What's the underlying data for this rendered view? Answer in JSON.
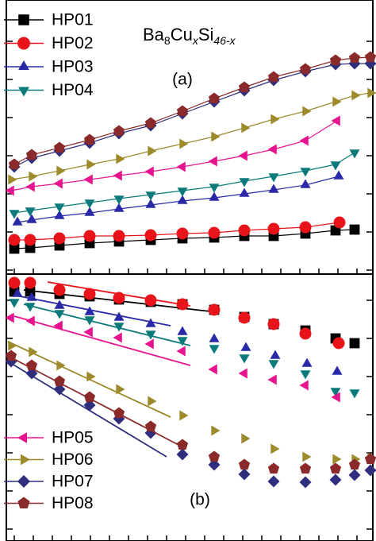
{
  "chart_data": [
    {
      "type": "line",
      "title_parts": [
        "Ba",
        "8",
        "Cu",
        "x",
        "Si",
        "46-x"
      ],
      "annotation": "(a)",
      "legend": "upper left",
      "xlim": [
        0,
        47.4
      ],
      "ylim": [
        0,
        34.5
      ],
      "xticks": [
        1.8,
        4.2,
        6.6,
        9,
        11.4,
        13.8,
        16.2,
        18.6,
        21,
        23.4,
        25.8,
        28.2,
        30.6,
        33,
        35.4,
        37.8,
        40.2,
        42.6,
        45
      ],
      "yticks": [
        0.5,
        5.3,
        10.1,
        14.9,
        19.7,
        24.5,
        29.3
      ],
      "series": [
        {
          "name": "HP01",
          "color": "#000000",
          "marker": "square",
          "x": [
            1.8,
            3.8,
            7.5,
            11.3,
            15,
            19,
            23,
            27,
            30.8,
            34.5,
            38.5,
            42.3,
            44.7
          ],
          "values": [
            3.2,
            3.3,
            3.6,
            3.9,
            4.1,
            4.3,
            4.5,
            4.6,
            4.8,
            4.8,
            5.1,
            5.5,
            5.6
          ]
        },
        {
          "name": "HP02",
          "color": "#e8141a",
          "marker": "circle",
          "x": [
            1.8,
            3.8,
            7.5,
            11.3,
            15,
            19,
            23,
            27,
            30.8,
            34.5,
            38.5,
            42.8
          ],
          "values": [
            4.3,
            4.3,
            4.5,
            4.8,
            4.8,
            4.9,
            5.1,
            5.2,
            5.5,
            5.7,
            5.9,
            6.5
          ]
        },
        {
          "name": "HP03",
          "color": "#2a2aa8",
          "marker": "triangle-up",
          "x": [
            2.2,
            4,
            7.5,
            11.3,
            15,
            19,
            23,
            27,
            30.8,
            34.5,
            38.5,
            42.7
          ],
          "values": [
            6.5,
            6.8,
            7.3,
            7.7,
            8.2,
            8.7,
            9.2,
            9.6,
            10.1,
            10.6,
            11.2,
            12.3
          ]
        },
        {
          "name": "HP04",
          "color": "#0a7a7a",
          "marker": "triangle-down",
          "x": [
            1.8,
            3.8,
            7.5,
            11.3,
            15,
            19,
            23,
            27,
            30.8,
            34.5,
            38.5,
            42.3,
            44.7
          ],
          "values": [
            7.7,
            8,
            8.5,
            9,
            9.5,
            10,
            10.5,
            11,
            11.7,
            12.3,
            13,
            13.8,
            15.3
          ]
        },
        {
          "name": "HP05",
          "color": "#e8138f",
          "marker": "triangle-left",
          "x": [
            1.4,
            4,
            7.5,
            11.3,
            15,
            19,
            23,
            27,
            30.8,
            34.5,
            38.5,
            42.5
          ],
          "values": [
            10.5,
            11,
            11.4,
            11.9,
            12.4,
            12.9,
            13.5,
            14.2,
            14.9,
            15.7,
            16.8,
            19.3
          ]
        },
        {
          "name": "HP06",
          "color": "#9c8a2b",
          "marker": "triangle-right",
          "x": [
            1.4,
            4,
            7.5,
            11.3,
            15,
            19,
            23,
            27,
            30.8,
            34.5,
            38.5,
            42.3,
            44.7,
            46.7
          ],
          "values": [
            11.9,
            12.3,
            13,
            13.8,
            14.5,
            15.5,
            16.4,
            17.3,
            18.4,
            19.5,
            20.5,
            21.7,
            22.5,
            22.8
          ]
        },
        {
          "name": "HP07",
          "color": "#2e2e7c",
          "marker": "diamond",
          "x": [
            1.8,
            4,
            7.5,
            11.3,
            15,
            19,
            23,
            27,
            30.8,
            34.5,
            38.5,
            42.3,
            44.7,
            46.7
          ],
          "values": [
            13.5,
            14.6,
            15.5,
            16.5,
            17.7,
            18.7,
            20.2,
            21.7,
            23.1,
            24.4,
            25.5,
            26.4,
            26.5,
            26.5
          ]
        },
        {
          "name": "HP08",
          "color": "#8b2a2a",
          "marker": "pentagon",
          "x": [
            1.8,
            4,
            7.5,
            11.3,
            15,
            19,
            23,
            27,
            30.8,
            34.5,
            38.5,
            42.3,
            44.7,
            46.7
          ],
          "values": [
            13.8,
            15,
            15.9,
            16.9,
            18,
            19,
            20.5,
            22.1,
            23.5,
            24.8,
            25.8,
            26.9,
            27.2,
            27.3
          ]
        }
      ]
    },
    {
      "type": "scatter",
      "annotation": "(b)",
      "legend": "lower left",
      "xlim": [
        0,
        47.4
      ],
      "ylim": [
        0,
        33.6
      ],
      "xticks": [
        1.8,
        4.2,
        6.6,
        9,
        11.4,
        13.8,
        16.2,
        18.6,
        21,
        23.4,
        25.8,
        28.2,
        30.6,
        33,
        35.4,
        37.8,
        40.2,
        42.6,
        45
      ],
      "yticks": [
        1.5,
        6.3,
        11.1,
        15.9,
        20.7,
        25.5,
        30.3
      ],
      "series": [
        {
          "name": "HP01",
          "color": "#000000",
          "marker": "square",
          "x": [
            1.8,
            3.8,
            7.5,
            11.3,
            15,
            19,
            23,
            27,
            30.8,
            34.5,
            38.5,
            42.3,
            44.7
          ],
          "values": [
            31.4,
            31.4,
            31.1,
            30.8,
            30.4,
            30.1,
            29.8,
            29.1,
            28.2,
            27.3,
            26.5,
            25.5,
            24.9
          ],
          "fit_x": [
            3,
            26.5
          ],
          "fit_values": [
            31.6,
            28.9
          ]
        },
        {
          "name": "HP02",
          "color": "#e8141a",
          "marker": "circle",
          "x": [
            1.8,
            3.8,
            7.5,
            11.3,
            15,
            19,
            23,
            27,
            30.8,
            34.5,
            38.5,
            42.7
          ],
          "values": [
            32.5,
            32.5,
            31.6,
            31.1,
            30.6,
            30.3,
            29.8,
            29.1,
            28.1,
            27.3,
            26.1,
            24.9
          ],
          "fit_x": [
            6,
            24
          ],
          "fit_values": [
            32.6,
            29.6
          ]
        },
        {
          "name": "HP03",
          "color": "#2a2aa8",
          "marker": "triangle-up",
          "x": [
            2.2,
            4,
            7.5,
            11.3,
            15,
            19,
            23,
            27,
            31,
            34.7,
            38.7,
            42.5
          ],
          "values": [
            31.1,
            30.6,
            29.6,
            28.8,
            28.1,
            27.3,
            26.3,
            25.4,
            24.3,
            23.3,
            22.3,
            21.3
          ],
          "fit_x": [
            2,
            21.5
          ],
          "fit_values": [
            30.9,
            27.1
          ]
        },
        {
          "name": "HP04",
          "color": "#0a7a7a",
          "marker": "triangle-down",
          "x": [
            1.8,
            3.8,
            7.5,
            11.3,
            15,
            19,
            23,
            27,
            30.8,
            34.5,
            38.5,
            42.3,
            44.7
          ],
          "values": [
            30.1,
            29.6,
            28.7,
            27.9,
            27.1,
            26.1,
            25.3,
            24.3,
            23.1,
            22.4,
            21.1,
            18.9,
            18.7
          ],
          "fit_x": [
            3,
            24
          ],
          "fit_values": [
            29.8,
            24.6
          ]
        },
        {
          "name": "HP05",
          "color": "#e8138f",
          "marker": "triangle-left",
          "x": [
            1.4,
            4,
            7.5,
            11.3,
            15,
            19,
            23,
            27,
            30.8,
            34.5,
            38.5,
            42.5
          ],
          "values": [
            28.1,
            27.7,
            27.1,
            26.3,
            25.6,
            24.8,
            23.9,
            21.6,
            21.1,
            20.3,
            19.6,
            18.1
          ],
          "fit_x": [
            1.8,
            24
          ],
          "fit_values": [
            28.3,
            22.1
          ]
        },
        {
          "name": "HP06",
          "color": "#9c8a2b",
          "marker": "triangle-right",
          "x": [
            1.4,
            4,
            7.5,
            11.3,
            15,
            19,
            23,
            27,
            30.8,
            34.5,
            38.5,
            42.3,
            44.7,
            46.7
          ],
          "values": [
            24.6,
            23.8,
            22.1,
            20.7,
            19.1,
            17.6,
            15.8,
            13.9,
            12.9,
            11.6,
            10.6,
            10.3,
            10.3,
            10.5
          ],
          "fit_x": [
            1,
            21.5
          ],
          "fit_values": [
            25.1,
            15.6
          ]
        },
        {
          "name": "HP07",
          "color": "#2e2e7c",
          "marker": "diamond",
          "x": [
            1.4,
            4,
            7.5,
            11.3,
            15,
            19,
            23,
            27,
            30.8,
            34.5,
            38.5,
            42.3,
            44.7,
            46.7
          ],
          "values": [
            22.6,
            21.1,
            19.1,
            17.1,
            15.4,
            13.6,
            10.9,
            9.6,
            8.4,
            7.5,
            7.4,
            7.7,
            8.3,
            8.9
          ],
          "fit_x": [
            1,
            21
          ],
          "fit_values": [
            22.6,
            10.6
          ]
        },
        {
          "name": "HP08",
          "color": "#8b2a2a",
          "marker": "pentagon",
          "x": [
            1.4,
            4,
            7.5,
            11.3,
            15,
            19,
            23,
            27,
            30.8,
            34.5,
            38.5,
            42.3,
            44.7,
            46.7
          ],
          "values": [
            23.3,
            22.1,
            20.1,
            18.1,
            16.1,
            14.4,
            12.1,
            10.6,
            9.6,
            9.1,
            9.1,
            9.1,
            9.6,
            10.3
          ],
          "fit_x": [
            1,
            22.5
          ],
          "fit_values": [
            23.3,
            12.1
          ]
        }
      ]
    }
  ]
}
